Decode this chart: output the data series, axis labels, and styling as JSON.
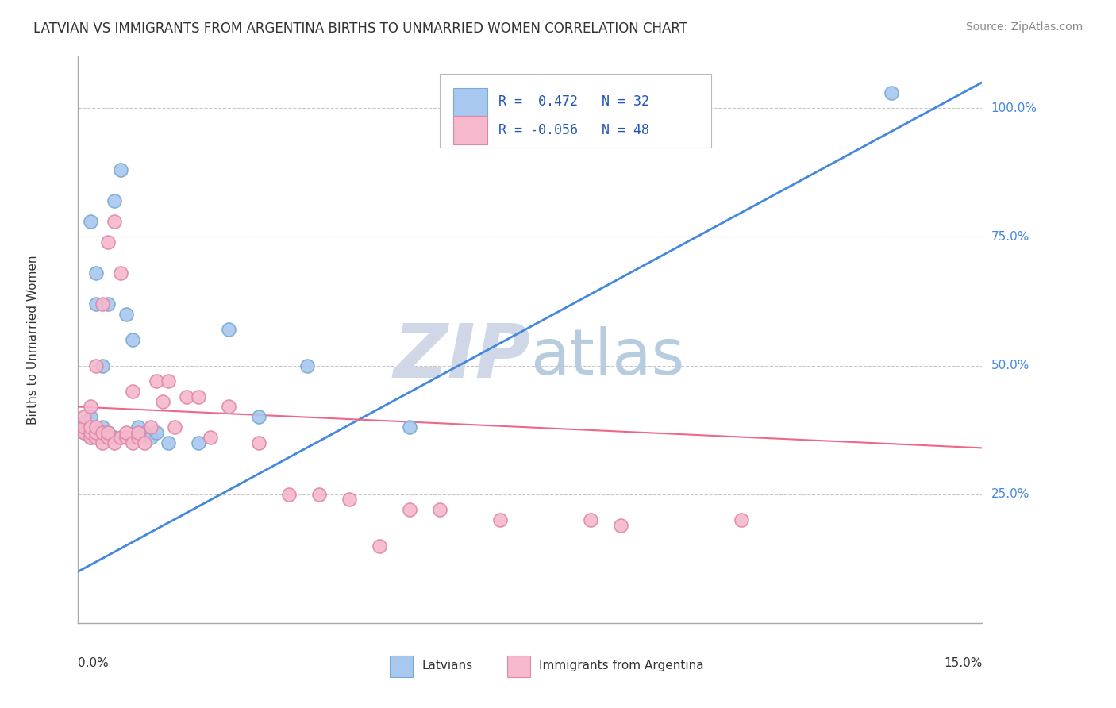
{
  "title": "LATVIAN VS IMMIGRANTS FROM ARGENTINA BIRTHS TO UNMARRIED WOMEN CORRELATION CHART",
  "source": "Source: ZipAtlas.com",
  "ylabel": "Births to Unmarried Women",
  "ytick_labels": [
    "25.0%",
    "50.0%",
    "75.0%",
    "100.0%"
  ],
  "ytick_values": [
    0.25,
    0.5,
    0.75,
    1.0
  ],
  "xmin": 0.0,
  "xmax": 0.15,
  "ymin": 0.0,
  "ymax": 1.1,
  "blue_color": "#a8c8f0",
  "blue_edge_color": "#7aaad0",
  "pink_color": "#f5b8cc",
  "pink_edge_color": "#e088a8",
  "blue_line_color": "#4488dd",
  "pink_line_color": "#ee6688",
  "blue_line_x0": 0.0,
  "blue_line_y0": 0.1,
  "blue_line_x1": 0.15,
  "blue_line_y1": 1.05,
  "pink_line_x0": 0.0,
  "pink_line_y0": 0.42,
  "pink_line_x1": 0.15,
  "pink_line_y1": 0.34,
  "lat_x": [
    0.001,
    0.001,
    0.001,
    0.002,
    0.002,
    0.002,
    0.002,
    0.003,
    0.003,
    0.003,
    0.004,
    0.004,
    0.004,
    0.005,
    0.005,
    0.005,
    0.006,
    0.006,
    0.007,
    0.008,
    0.009,
    0.01,
    0.011,
    0.012,
    0.013,
    0.015,
    0.02,
    0.025,
    0.03,
    0.038,
    0.055,
    0.135
  ],
  "lat_y": [
    0.37,
    0.38,
    0.39,
    0.36,
    0.38,
    0.4,
    0.78,
    0.37,
    0.62,
    0.68,
    0.36,
    0.38,
    0.5,
    0.36,
    0.37,
    0.62,
    0.36,
    0.82,
    0.88,
    0.6,
    0.55,
    0.38,
    0.37,
    0.36,
    0.37,
    0.35,
    0.35,
    0.57,
    0.4,
    0.5,
    0.38,
    1.03
  ],
  "arg_x": [
    0.001,
    0.001,
    0.001,
    0.002,
    0.002,
    0.002,
    0.002,
    0.003,
    0.003,
    0.003,
    0.003,
    0.004,
    0.004,
    0.004,
    0.005,
    0.005,
    0.005,
    0.006,
    0.006,
    0.007,
    0.007,
    0.008,
    0.008,
    0.009,
    0.009,
    0.01,
    0.01,
    0.011,
    0.012,
    0.013,
    0.014,
    0.015,
    0.016,
    0.018,
    0.02,
    0.022,
    0.025,
    0.03,
    0.035,
    0.04,
    0.045,
    0.05,
    0.055,
    0.06,
    0.07,
    0.085,
    0.09,
    0.11
  ],
  "arg_y": [
    0.37,
    0.38,
    0.4,
    0.36,
    0.37,
    0.38,
    0.42,
    0.36,
    0.37,
    0.38,
    0.5,
    0.35,
    0.37,
    0.62,
    0.36,
    0.37,
    0.74,
    0.35,
    0.78,
    0.36,
    0.68,
    0.36,
    0.37,
    0.35,
    0.45,
    0.36,
    0.37,
    0.35,
    0.38,
    0.47,
    0.43,
    0.47,
    0.38,
    0.44,
    0.44,
    0.36,
    0.42,
    0.35,
    0.25,
    0.25,
    0.24,
    0.15,
    0.22,
    0.22,
    0.2,
    0.2,
    0.19,
    0.2
  ],
  "watermark_zip_color": "#d0d8e8",
  "watermark_atlas_color": "#b8cce0",
  "figsize": [
    14.06,
    8.92
  ],
  "dpi": 100
}
